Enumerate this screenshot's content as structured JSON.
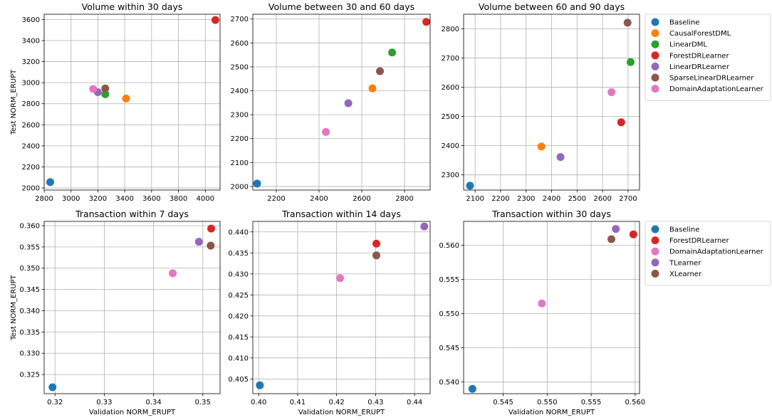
{
  "figure": {
    "colors": {
      "Baseline": "#1f77b4",
      "CausalForestDML": "#ff7f0e",
      "LinearDML": "#2ca02c",
      "ForestDRLearner": "#d62728",
      "LinearDRLearner": "#9467bd",
      "SparseLinearDRLearner": "#8c564b",
      "DomainAdaptationLearner": "#e377c2",
      "TLearner": "#9467bd",
      "XLearner": "#8c564b"
    }
  },
  "chart_data": [
    {
      "type": "scatter",
      "title": "Volume within 30 days",
      "xlabel": "",
      "ylabel": "Test NORM_ERUPT",
      "xlim": [
        2800,
        4110
      ],
      "ylim": [
        1980,
        3650
      ],
      "xticks": [
        {
          "v": 2800,
          "label": "2800"
        },
        {
          "v": 3000,
          "label": "3000"
        },
        {
          "v": 3200,
          "label": "3200"
        },
        {
          "v": 3400,
          "label": "3400"
        },
        {
          "v": 3600,
          "label": "3600"
        },
        {
          "v": 3800,
          "label": "3800"
        },
        {
          "v": 4000,
          "label": "4000"
        }
      ],
      "yticks": [
        {
          "v": 2000,
          "label": "2000"
        },
        {
          "v": 2200,
          "label": "2200"
        },
        {
          "v": 2400,
          "label": "2400"
        },
        {
          "v": 2600,
          "label": "2600"
        },
        {
          "v": 2800,
          "label": "2800"
        },
        {
          "v": 3000,
          "label": "3000"
        },
        {
          "v": 3200,
          "label": "3200"
        },
        {
          "v": 3400,
          "label": "3400"
        },
        {
          "v": 3600,
          "label": "3600"
        }
      ],
      "grid": true,
      "points": [
        {
          "series": "Baseline",
          "x": 2845,
          "y": 2055
        },
        {
          "series": "CausalForestDML",
          "x": 3410,
          "y": 2850
        },
        {
          "series": "LinearDML",
          "x": 3255,
          "y": 2890
        },
        {
          "series": "ForestDRLearner",
          "x": 4075,
          "y": 3595
        },
        {
          "series": "LinearDRLearner",
          "x": 3200,
          "y": 2910
        },
        {
          "series": "SparseLinearDRLearner",
          "x": 3255,
          "y": 2945
        },
        {
          "series": "DomainAdaptationLearner",
          "x": 3165,
          "y": 2940
        }
      ]
    },
    {
      "type": "scatter",
      "title": "Volume between 30 and 60 days",
      "xlabel": "",
      "ylabel": "",
      "xlim": [
        2090,
        2920
      ],
      "ylim": [
        1985,
        2720
      ],
      "xticks": [
        {
          "v": 2200,
          "label": "2200"
        },
        {
          "v": 2400,
          "label": "2400"
        },
        {
          "v": 2600,
          "label": "2600"
        },
        {
          "v": 2800,
          "label": "2800"
        }
      ],
      "yticks": [
        {
          "v": 2000,
          "label": "2000"
        },
        {
          "v": 2100,
          "label": "2100"
        },
        {
          "v": 2200,
          "label": "2200"
        },
        {
          "v": 2300,
          "label": "2300"
        },
        {
          "v": 2400,
          "label": "2400"
        },
        {
          "v": 2500,
          "label": "2500"
        },
        {
          "v": 2600,
          "label": "2600"
        },
        {
          "v": 2700,
          "label": "2700"
        }
      ],
      "grid": true,
      "points": [
        {
          "series": "Baseline",
          "x": 2110,
          "y": 2012
        },
        {
          "series": "CausalForestDML",
          "x": 2650,
          "y": 2410
        },
        {
          "series": "LinearDML",
          "x": 2742,
          "y": 2560
        },
        {
          "series": "ForestDRLearner",
          "x": 2902,
          "y": 2688
        },
        {
          "series": "LinearDRLearner",
          "x": 2537,
          "y": 2348
        },
        {
          "series": "SparseLinearDRLearner",
          "x": 2685,
          "y": 2482
        },
        {
          "series": "DomainAdaptationLearner",
          "x": 2432,
          "y": 2228
        }
      ]
    },
    {
      "type": "scatter",
      "title": "Volume between 60 and 90 days",
      "xlabel": "",
      "ylabel": "",
      "xlim": [
        2055,
        2745
      ],
      "ylim": [
        2248,
        2850
      ],
      "xticks": [
        {
          "v": 2100,
          "label": "2100"
        },
        {
          "v": 2200,
          "label": "2200"
        },
        {
          "v": 2300,
          "label": "2300"
        },
        {
          "v": 2400,
          "label": "2400"
        },
        {
          "v": 2500,
          "label": "2500"
        },
        {
          "v": 2600,
          "label": "2600"
        },
        {
          "v": 2700,
          "label": "2700"
        }
      ],
      "yticks": [
        {
          "v": 2300,
          "label": "2300"
        },
        {
          "v": 2400,
          "label": "2400"
        },
        {
          "v": 2500,
          "label": "2500"
        },
        {
          "v": 2600,
          "label": "2600"
        },
        {
          "v": 2700,
          "label": "2700"
        },
        {
          "v": 2800,
          "label": "2800"
        }
      ],
      "grid": true,
      "points": [
        {
          "series": "Baseline",
          "x": 2080,
          "y": 2263
        },
        {
          "series": "CausalForestDML",
          "x": 2360,
          "y": 2397
        },
        {
          "series": "LinearDML",
          "x": 2710,
          "y": 2686
        },
        {
          "series": "ForestDRLearner",
          "x": 2673,
          "y": 2480
        },
        {
          "series": "LinearDRLearner",
          "x": 2435,
          "y": 2361
        },
        {
          "series": "SparseLinearDRLearner",
          "x": 2698,
          "y": 2821
        },
        {
          "series": "DomainAdaptationLearner",
          "x": 2635,
          "y": 2583
        }
      ],
      "legend": {
        "placement": "outside-right",
        "entries": [
          "Baseline",
          "CausalForestDML",
          "LinearDML",
          "ForestDRLearner",
          "LinearDRLearner",
          "SparseLinearDRLearner",
          "DomainAdaptationLearner"
        ]
      }
    },
    {
      "type": "scatter",
      "title": "Transaction within 7 days",
      "xlabel": "Validation NORM_ERUPT",
      "ylabel": "Test NORM_ERUPT",
      "xlim": [
        0.3178,
        0.3535
      ],
      "ylim": [
        0.3205,
        0.361
      ],
      "xticks": [
        {
          "v": 0.32,
          "label": "0.32"
        },
        {
          "v": 0.33,
          "label": "0.33"
        },
        {
          "v": 0.34,
          "label": "0.34"
        },
        {
          "v": 0.35,
          "label": "0.35"
        }
      ],
      "yticks": [
        {
          "v": 0.325,
          "label": "0.325"
        },
        {
          "v": 0.33,
          "label": "0.330"
        },
        {
          "v": 0.335,
          "label": "0.335"
        },
        {
          "v": 0.34,
          "label": "0.340"
        },
        {
          "v": 0.345,
          "label": "0.345"
        },
        {
          "v": 0.35,
          "label": "0.350"
        },
        {
          "v": 0.355,
          "label": "0.355"
        },
        {
          "v": 0.36,
          "label": "0.360"
        }
      ],
      "grid": true,
      "points": [
        {
          "series": "Baseline",
          "x": 0.3195,
          "y": 0.322
        },
        {
          "series": "ForestDRLearner",
          "x": 0.3517,
          "y": 0.3593
        },
        {
          "series": "DomainAdaptationLearner",
          "x": 0.3439,
          "y": 0.3488
        },
        {
          "series": "TLearner",
          "x": 0.3492,
          "y": 0.3562
        },
        {
          "series": "XLearner",
          "x": 0.3516,
          "y": 0.3553
        }
      ]
    },
    {
      "type": "scatter",
      "title": "Transaction within 14 days",
      "xlabel": "Validation NORM_ERUPT",
      "ylabel": "",
      "xlim": [
        0.3985,
        0.444
      ],
      "ylim": [
        0.4015,
        0.4425
      ],
      "xticks": [
        {
          "v": 0.4,
          "label": "0.40"
        },
        {
          "v": 0.41,
          "label": "0.41"
        },
        {
          "v": 0.42,
          "label": "0.42"
        },
        {
          "v": 0.43,
          "label": "0.43"
        },
        {
          "v": 0.44,
          "label": "0.44"
        }
      ],
      "yticks": [
        {
          "v": 0.405,
          "label": "0.405"
        },
        {
          "v": 0.41,
          "label": "0.410"
        },
        {
          "v": 0.415,
          "label": "0.415"
        },
        {
          "v": 0.42,
          "label": "0.420"
        },
        {
          "v": 0.425,
          "label": "0.425"
        },
        {
          "v": 0.43,
          "label": "0.430"
        },
        {
          "v": 0.435,
          "label": "0.435"
        },
        {
          "v": 0.44,
          "label": "0.440"
        }
      ],
      "grid": true,
      "points": [
        {
          "series": "Baseline",
          "x": 0.4003,
          "y": 0.4035
        },
        {
          "series": "ForestDRLearner",
          "x": 0.4302,
          "y": 0.4372
        },
        {
          "series": "DomainAdaptationLearner",
          "x": 0.4209,
          "y": 0.429
        },
        {
          "series": "TLearner",
          "x": 0.4425,
          "y": 0.4413
        },
        {
          "series": "XLearner",
          "x": 0.4302,
          "y": 0.4344
        }
      ]
    },
    {
      "type": "scatter",
      "title": "Transaction within 30 days",
      "xlabel": "Validation NORM_ERUPT",
      "ylabel": "",
      "xlim": [
        0.5405,
        0.5605
      ],
      "ylim": [
        0.5383,
        0.5635
      ],
      "xticks": [
        {
          "v": 0.545,
          "label": "0.545"
        },
        {
          "v": 0.55,
          "label": "0.550"
        },
        {
          "v": 0.555,
          "label": "0.555"
        },
        {
          "v": 0.56,
          "label": "0.560"
        }
      ],
      "yticks": [
        {
          "v": 0.54,
          "label": "0.540"
        },
        {
          "v": 0.545,
          "label": "0.545"
        },
        {
          "v": 0.55,
          "label": "0.550"
        },
        {
          "v": 0.555,
          "label": "0.555"
        },
        {
          "v": 0.56,
          "label": "0.560"
        }
      ],
      "grid": true,
      "points": [
        {
          "series": "Baseline",
          "x": 0.5415,
          "y": 0.539
        },
        {
          "series": "ForestDRLearner",
          "x": 0.5598,
          "y": 0.5616
        },
        {
          "series": "DomainAdaptationLearner",
          "x": 0.5494,
          "y": 0.5515
        },
        {
          "series": "TLearner",
          "x": 0.5578,
          "y": 0.5624
        },
        {
          "series": "XLearner",
          "x": 0.5573,
          "y": 0.5609
        }
      ],
      "legend": {
        "placement": "outside-right",
        "entries": [
          "Baseline",
          "ForestDRLearner",
          "DomainAdaptationLearner",
          "TLearner",
          "XLearner"
        ]
      }
    }
  ]
}
